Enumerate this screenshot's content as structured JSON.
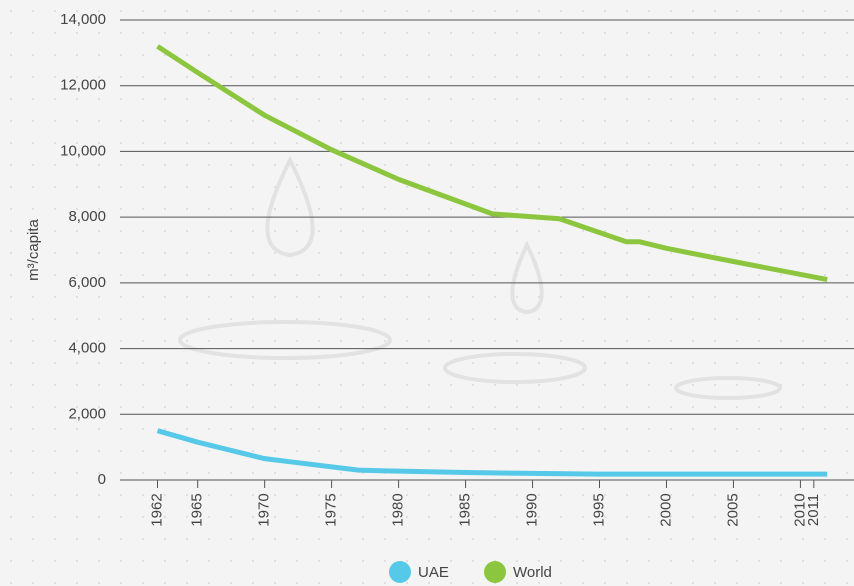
{
  "chart_data": {
    "type": "line",
    "y_label": "m³/capita",
    "xlim": [
      1959.2,
      2014
    ],
    "xticks": [
      1962,
      1965,
      1970,
      1975,
      1980,
      1985,
      1990,
      1995,
      2000,
      2005,
      2010,
      2011
    ],
    "ylim": [
      0,
      14000
    ],
    "yticks": [
      {
        "value": 0,
        "label": "0"
      },
      {
        "value": 2000,
        "label": "2,000"
      },
      {
        "value": 4000,
        "label": "4,000"
      },
      {
        "value": 6000,
        "label": "6,000"
      },
      {
        "value": 8000,
        "label": "8,000"
      },
      {
        "value": 10000,
        "label": "10,000"
      },
      {
        "value": 12000,
        "label": "12,000"
      },
      {
        "value": 14000,
        "label": "14,000"
      }
    ],
    "grid": true,
    "legend": "bottom",
    "series": [
      {
        "name": "UAE",
        "color": "#56c8e8",
        "x": [
          1962,
          1965,
          1970,
          1972,
          1977,
          1980,
          1985,
          1990,
          1995,
          2000,
          2005,
          2012
        ],
        "values": [
          1500,
          1150,
          650,
          550,
          300,
          270,
          230,
          200,
          180,
          180,
          180,
          180
        ]
      },
      {
        "name": "World",
        "color": "#8cc63f",
        "x": [
          1962,
          1965,
          1970,
          1975,
          1980,
          1985,
          1987,
          1992,
          1997,
          1998,
          2000,
          2005,
          2012
        ],
        "values": [
          13200,
          12400,
          11100,
          10050,
          9150,
          8400,
          8100,
          7950,
          7250,
          7250,
          7050,
          6650,
          6100
        ]
      }
    ]
  }
}
